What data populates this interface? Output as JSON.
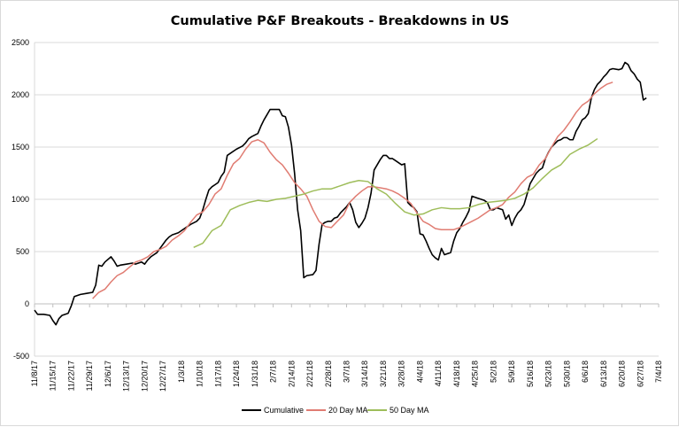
{
  "chart_data": {
    "type": "line",
    "title": "Cumulative P&F Breakouts - Breakdowns in US",
    "xlabel": "",
    "ylabel": "",
    "ylim": [
      -500,
      2500
    ],
    "yticks": [
      "-500",
      "0",
      "500",
      "1000",
      "1500",
      "2000",
      "2500"
    ],
    "x_start": "11/8/17",
    "x_ticks": [
      "11/8/17",
      "11/15/17",
      "11/22/17",
      "11/29/17",
      "12/6/17",
      "12/13/17",
      "12/20/17",
      "12/27/17",
      "1/3/18",
      "1/10/18",
      "1/17/18",
      "1/24/18",
      "1/31/18",
      "2/7/18",
      "2/14/18",
      "2/21/18",
      "2/28/18",
      "3/7/18",
      "3/14/18",
      "3/21/18",
      "3/28/18",
      "4/4/18",
      "4/11/18",
      "4/18/18",
      "4/25/18",
      "5/2/18",
      "5/9/18",
      "5/16/18",
      "5/23/18",
      "5/30/18",
      "6/6/18",
      "6/13/18",
      "6/20/18",
      "6/27/18",
      "7/4/18"
    ],
    "grid": "horizontal",
    "legend": "bottom",
    "series": [
      {
        "name": "Cumulative",
        "color": "#000000",
        "points": [
          [
            0,
            -60
          ],
          [
            1,
            -100
          ],
          [
            3,
            -100
          ],
          [
            5,
            -110
          ],
          [
            6,
            -160
          ],
          [
            7,
            -200
          ],
          [
            8,
            -140
          ],
          [
            9,
            -110
          ],
          [
            11,
            -90
          ],
          [
            12,
            -20
          ],
          [
            13,
            70
          ],
          [
            15,
            90
          ],
          [
            17,
            100
          ],
          [
            19,
            110
          ],
          [
            20,
            180
          ],
          [
            21,
            370
          ],
          [
            22,
            360
          ],
          [
            23,
            400
          ],
          [
            25,
            450
          ],
          [
            26,
            410
          ],
          [
            27,
            360
          ],
          [
            28,
            370
          ],
          [
            30,
            380
          ],
          [
            32,
            390
          ],
          [
            33,
            380
          ],
          [
            35,
            400
          ],
          [
            36,
            380
          ],
          [
            37,
            420
          ],
          [
            38,
            450
          ],
          [
            40,
            490
          ],
          [
            41,
            530
          ],
          [
            42,
            570
          ],
          [
            43,
            610
          ],
          [
            44,
            640
          ],
          [
            45,
            660
          ],
          [
            47,
            680
          ],
          [
            48,
            700
          ],
          [
            50,
            740
          ],
          [
            51,
            760
          ],
          [
            53,
            790
          ],
          [
            54,
            820
          ],
          [
            55,
            900
          ],
          [
            56,
            1000
          ],
          [
            57,
            1090
          ],
          [
            58,
            1120
          ],
          [
            59,
            1140
          ],
          [
            60,
            1160
          ],
          [
            61,
            1220
          ],
          [
            62,
            1260
          ],
          [
            63,
            1420
          ],
          [
            64,
            1440
          ],
          [
            66,
            1480
          ],
          [
            68,
            1510
          ],
          [
            69,
            1540
          ],
          [
            70,
            1580
          ],
          [
            71,
            1600
          ],
          [
            73,
            1630
          ],
          [
            74,
            1700
          ],
          [
            75,
            1760
          ],
          [
            76,
            1810
          ],
          [
            77,
            1860
          ],
          [
            79,
            1860
          ],
          [
            80,
            1860
          ],
          [
            81,
            1800
          ],
          [
            82,
            1790
          ],
          [
            83,
            1690
          ],
          [
            84,
            1520
          ],
          [
            85,
            1250
          ],
          [
            86,
            900
          ],
          [
            87,
            700
          ],
          [
            88,
            250
          ],
          [
            89,
            270
          ],
          [
            91,
            280
          ],
          [
            92,
            320
          ],
          [
            93,
            570
          ],
          [
            94,
            760
          ],
          [
            95,
            780
          ],
          [
            96,
            790
          ],
          [
            97,
            790
          ],
          [
            98,
            820
          ],
          [
            99,
            830
          ],
          [
            100,
            870
          ],
          [
            101,
            900
          ],
          [
            102,
            930
          ],
          [
            103,
            970
          ],
          [
            104,
            900
          ],
          [
            105,
            780
          ],
          [
            106,
            730
          ],
          [
            107,
            770
          ],
          [
            108,
            820
          ],
          [
            109,
            920
          ],
          [
            110,
            1060
          ],
          [
            111,
            1280
          ],
          [
            112,
            1330
          ],
          [
            113,
            1380
          ],
          [
            114,
            1420
          ],
          [
            115,
            1420
          ],
          [
            116,
            1390
          ],
          [
            117,
            1390
          ],
          [
            118,
            1370
          ],
          [
            119,
            1350
          ],
          [
            120,
            1330
          ],
          [
            121,
            1340
          ],
          [
            122,
            970
          ],
          [
            123,
            940
          ],
          [
            124,
            920
          ],
          [
            125,
            880
          ],
          [
            126,
            670
          ],
          [
            127,
            660
          ],
          [
            128,
            600
          ],
          [
            129,
            530
          ],
          [
            130,
            470
          ],
          [
            131,
            440
          ],
          [
            132,
            420
          ],
          [
            133,
            530
          ],
          [
            134,
            470
          ],
          [
            136,
            490
          ],
          [
            137,
            600
          ],
          [
            138,
            680
          ],
          [
            139,
            720
          ],
          [
            140,
            780
          ],
          [
            141,
            830
          ],
          [
            142,
            890
          ],
          [
            143,
            1030
          ],
          [
            145,
            1010
          ],
          [
            147,
            990
          ],
          [
            148,
            970
          ],
          [
            149,
            900
          ],
          [
            150,
            900
          ],
          [
            151,
            920
          ],
          [
            152,
            910
          ],
          [
            153,
            900
          ],
          [
            154,
            810
          ],
          [
            155,
            850
          ],
          [
            156,
            750
          ],
          [
            157,
            820
          ],
          [
            158,
            870
          ],
          [
            159,
            900
          ],
          [
            160,
            950
          ],
          [
            161,
            1050
          ],
          [
            162,
            1150
          ],
          [
            163,
            1200
          ],
          [
            164,
            1250
          ],
          [
            165,
            1280
          ],
          [
            166,
            1300
          ],
          [
            167,
            1390
          ],
          [
            168,
            1450
          ],
          [
            169,
            1500
          ],
          [
            170,
            1530
          ],
          [
            171,
            1560
          ],
          [
            172,
            1570
          ],
          [
            173,
            1590
          ],
          [
            174,
            1590
          ],
          [
            175,
            1570
          ],
          [
            176,
            1570
          ],
          [
            177,
            1650
          ],
          [
            178,
            1700
          ],
          [
            179,
            1760
          ],
          [
            180,
            1780
          ],
          [
            181,
            1820
          ],
          [
            182,
            1970
          ],
          [
            183,
            2050
          ],
          [
            184,
            2100
          ],
          [
            185,
            2130
          ],
          [
            186,
            2170
          ],
          [
            187,
            2200
          ],
          [
            188,
            2240
          ],
          [
            189,
            2250
          ],
          [
            191,
            2240
          ],
          [
            192,
            2250
          ],
          [
            193,
            2310
          ],
          [
            194,
            2290
          ],
          [
            195,
            2230
          ],
          [
            196,
            2200
          ],
          [
            197,
            2150
          ],
          [
            198,
            2120
          ],
          [
            199,
            1950
          ],
          [
            200,
            1970
          ]
        ]
      },
      {
        "name": "20 Day MA",
        "color": "#e07c72",
        "points": [
          [
            19,
            50
          ],
          [
            21,
            110
          ],
          [
            23,
            140
          ],
          [
            25,
            210
          ],
          [
            27,
            270
          ],
          [
            29,
            300
          ],
          [
            31,
            350
          ],
          [
            33,
            400
          ],
          [
            35,
            420
          ],
          [
            37,
            450
          ],
          [
            39,
            500
          ],
          [
            41,
            520
          ],
          [
            43,
            550
          ],
          [
            45,
            610
          ],
          [
            47,
            650
          ],
          [
            49,
            700
          ],
          [
            51,
            780
          ],
          [
            53,
            850
          ],
          [
            55,
            880
          ],
          [
            57,
            950
          ],
          [
            59,
            1050
          ],
          [
            61,
            1100
          ],
          [
            63,
            1230
          ],
          [
            65,
            1340
          ],
          [
            67,
            1390
          ],
          [
            69,
            1480
          ],
          [
            71,
            1550
          ],
          [
            73,
            1570
          ],
          [
            75,
            1540
          ],
          [
            77,
            1450
          ],
          [
            79,
            1380
          ],
          [
            81,
            1330
          ],
          [
            83,
            1250
          ],
          [
            85,
            1160
          ],
          [
            87,
            1100
          ],
          [
            89,
            1030
          ],
          [
            91,
            900
          ],
          [
            93,
            790
          ],
          [
            95,
            740
          ],
          [
            97,
            730
          ],
          [
            99,
            790
          ],
          [
            101,
            850
          ],
          [
            103,
            970
          ],
          [
            105,
            1030
          ],
          [
            107,
            1080
          ],
          [
            109,
            1120
          ],
          [
            111,
            1120
          ],
          [
            113,
            1110
          ],
          [
            115,
            1100
          ],
          [
            117,
            1080
          ],
          [
            119,
            1050
          ],
          [
            121,
            1010
          ],
          [
            123,
            960
          ],
          [
            125,
            870
          ],
          [
            127,
            790
          ],
          [
            129,
            760
          ],
          [
            131,
            720
          ],
          [
            133,
            710
          ],
          [
            135,
            710
          ],
          [
            137,
            710
          ],
          [
            139,
            730
          ],
          [
            141,
            760
          ],
          [
            143,
            790
          ],
          [
            145,
            820
          ],
          [
            147,
            860
          ],
          [
            149,
            900
          ],
          [
            151,
            920
          ],
          [
            153,
            950
          ],
          [
            155,
            1020
          ],
          [
            157,
            1070
          ],
          [
            159,
            1150
          ],
          [
            161,
            1210
          ],
          [
            163,
            1240
          ],
          [
            165,
            1330
          ],
          [
            167,
            1390
          ],
          [
            169,
            1500
          ],
          [
            171,
            1600
          ],
          [
            173,
            1660
          ],
          [
            175,
            1740
          ],
          [
            177,
            1830
          ],
          [
            179,
            1900
          ],
          [
            181,
            1940
          ],
          [
            183,
            2010
          ],
          [
            185,
            2060
          ],
          [
            187,
            2100
          ],
          [
            189,
            2120
          ]
        ]
      },
      {
        "name": "50 Day MA",
        "color": "#9ebd5a",
        "points": [
          [
            52,
            540
          ],
          [
            55,
            580
          ],
          [
            58,
            700
          ],
          [
            61,
            750
          ],
          [
            64,
            900
          ],
          [
            67,
            940
          ],
          [
            70,
            970
          ],
          [
            73,
            990
          ],
          [
            76,
            980
          ],
          [
            79,
            1000
          ],
          [
            82,
            1010
          ],
          [
            85,
            1030
          ],
          [
            88,
            1050
          ],
          [
            91,
            1080
          ],
          [
            94,
            1100
          ],
          [
            97,
            1100
          ],
          [
            100,
            1130
          ],
          [
            103,
            1160
          ],
          [
            106,
            1180
          ],
          [
            109,
            1170
          ],
          [
            112,
            1100
          ],
          [
            115,
            1050
          ],
          [
            118,
            960
          ],
          [
            121,
            880
          ],
          [
            124,
            850
          ],
          [
            127,
            860
          ],
          [
            130,
            900
          ],
          [
            133,
            920
          ],
          [
            136,
            910
          ],
          [
            139,
            910
          ],
          [
            142,
            920
          ],
          [
            145,
            950
          ],
          [
            148,
            970
          ],
          [
            151,
            980
          ],
          [
            154,
            990
          ],
          [
            157,
            1010
          ],
          [
            160,
            1050
          ],
          [
            163,
            1110
          ],
          [
            166,
            1200
          ],
          [
            169,
            1280
          ],
          [
            172,
            1330
          ],
          [
            175,
            1430
          ],
          [
            178,
            1480
          ],
          [
            181,
            1520
          ],
          [
            184,
            1580
          ]
        ]
      }
    ]
  }
}
